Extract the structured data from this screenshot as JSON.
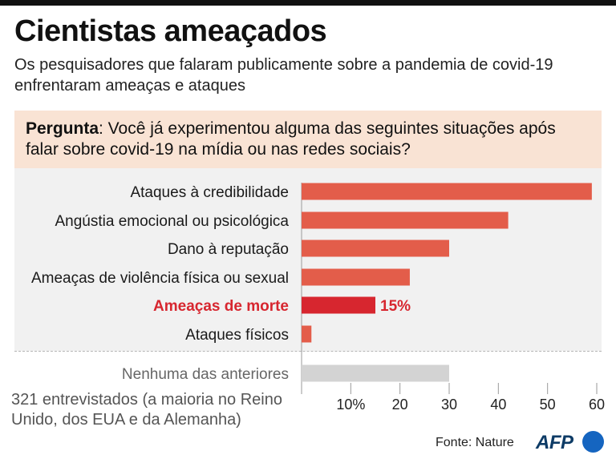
{
  "header": {
    "title": "Cientistas ameaçados",
    "subtitle": "Os pesquisadores que falaram publicamente sobre a pandemia de covid-19 enfrentaram ameaças e ataques"
  },
  "question": {
    "label": "Pergunta",
    "text": ": Você já experimentou alguma das seguintes situações após falar sobre covid-19 na mídia ou nas redes sociais?"
  },
  "chart_data": {
    "type": "bar",
    "orientation": "horizontal",
    "categories": [
      "Ataques à credibilidade",
      "Angústia emocional ou psicológica",
      "Dano à reputação",
      "Ameaças de violência física ou sexual",
      "Ameaças de morte",
      "Ataques físicos",
      "Nenhuma das anteriores"
    ],
    "values": [
      59,
      42,
      30,
      22,
      15,
      2,
      30
    ],
    "highlight_index": 4,
    "highlight_label": "15%",
    "xlim": [
      0,
      60
    ],
    "xticks": [
      10,
      20,
      30,
      40,
      50,
      60
    ],
    "xtick_labels": [
      "10%",
      "20",
      "30",
      "40",
      "50",
      "60"
    ],
    "colors": {
      "bar": "#e35d4a",
      "highlight": "#d7262f",
      "none_bar": "#d3d3d3",
      "highlight_text": "#d7262f",
      "muted_text": "#666666"
    }
  },
  "footer": {
    "note": "321 entrevistados (a maioria no Reino Unido, dos EUA e da Alemanha)",
    "source": "Fonte: Nature",
    "logo_text": "AFP"
  }
}
